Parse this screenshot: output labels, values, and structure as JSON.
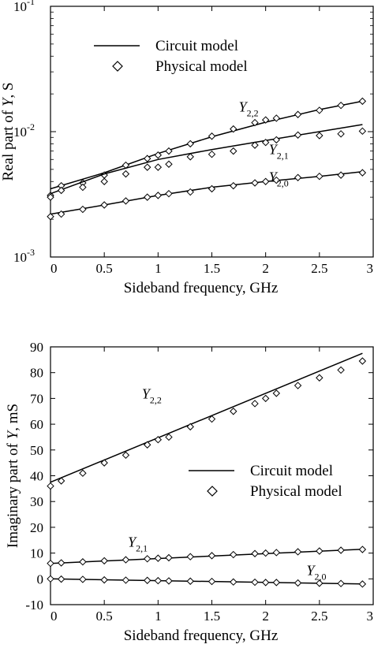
{
  "chart_data": [
    {
      "type": "line",
      "xlabel": "Sideband frequency, GHz",
      "ylabel_pre": "Real part of ",
      "ylabel_var": "Y",
      "ylabel_post": ", S",
      "yscale": "log",
      "xlim": [
        0,
        3
      ],
      "ylim": [
        0.001,
        0.1
      ],
      "x_ticks": [
        "0",
        "0.5",
        "1",
        "1.5",
        "2",
        "2.5",
        "3"
      ],
      "y_ticks": [
        {
          "value": 0.001,
          "base": "10",
          "exp": "-3"
        },
        {
          "value": 0.01,
          "base": "10",
          "exp": "-2"
        },
        {
          "value": 0.1,
          "base": "10",
          "exp": "-1"
        }
      ],
      "legend": {
        "placement": "top-left",
        "line_label": "Circuit model",
        "marker_label": "Physical model"
      },
      "series": [
        {
          "name": "Y2,2",
          "label_main": "Y",
          "label_sub": "2,2",
          "label_at": [
            1.75,
            0.0145
          ],
          "line": {
            "x": [
              0,
              0.5,
              1,
              1.5,
              2,
              2.5,
              2.9
            ],
            "y": [
              0.0035,
              0.0047,
              0.0067,
              0.0091,
              0.0119,
              0.015,
              0.0175
            ]
          },
          "markers": {
            "x": [
              0,
              0.1,
              0.3,
              0.5,
              0.7,
              0.9,
              1.0,
              1.1,
              1.3,
              1.5,
              1.7,
              1.9,
              2.0,
              2.1,
              2.3,
              2.5,
              2.7,
              2.9
            ],
            "y": [
              0.0031,
              0.0037,
              0.0039,
              0.0045,
              0.0054,
              0.0061,
              0.0065,
              0.007,
              0.008,
              0.0092,
              0.0105,
              0.0118,
              0.0124,
              0.0128,
              0.0137,
              0.0148,
              0.0162,
              0.0175
            ]
          }
        },
        {
          "name": "Y2,1",
          "label_main": "Y",
          "label_sub": "2,1",
          "label_at": [
            2.03,
            0.0066
          ],
          "line": {
            "x": [
              0,
              0.5,
              1,
              1.5,
              2,
              2.5,
              2.9
            ],
            "y": [
              0.0032,
              0.0046,
              0.006,
              0.0072,
              0.0085,
              0.01,
              0.0114
            ]
          },
          "markers": {
            "x": [
              0,
              0.1,
              0.3,
              0.5,
              0.7,
              0.9,
              1.0,
              1.1,
              1.3,
              1.5,
              1.7,
              1.9,
              2.0,
              2.1,
              2.3,
              2.5,
              2.7,
              2.9
            ],
            "y": [
              0.003,
              0.0034,
              0.0036,
              0.004,
              0.0046,
              0.0052,
              0.0052,
              0.0055,
              0.0063,
              0.0066,
              0.007,
              0.0078,
              0.0082,
              0.0086,
              0.0094,
              0.0093,
              0.0096,
              0.0101
            ]
          }
        },
        {
          "name": "Y2,0",
          "label_main": "Y",
          "label_sub": "2,0",
          "label_at": [
            2.03,
            0.004
          ],
          "line": {
            "x": [
              0,
              0.5,
              1,
              1.5,
              2,
              2.5,
              2.9
            ],
            "y": [
              0.0022,
              0.0026,
              0.0031,
              0.0036,
              0.004,
              0.0044,
              0.0048
            ]
          },
          "markers": {
            "x": [
              0,
              0.1,
              0.3,
              0.5,
              0.7,
              0.9,
              1.0,
              1.1,
              1.3,
              1.5,
              1.7,
              1.9,
              2.0,
              2.1,
              2.3,
              2.5,
              2.7,
              2.9
            ],
            "y": [
              0.0021,
              0.0022,
              0.0024,
              0.0026,
              0.0028,
              0.003,
              0.0031,
              0.0032,
              0.0033,
              0.0035,
              0.0037,
              0.0039,
              0.004,
              0.0041,
              0.0043,
              0.0044,
              0.0045,
              0.0047
            ]
          }
        }
      ]
    },
    {
      "type": "line",
      "xlabel": "Sideband frequency, GHz",
      "ylabel_pre": "Imaginary part of ",
      "ylabel_var": "Y",
      "ylabel_post": ", mS",
      "yscale": "linear",
      "xlim": [
        0,
        3
      ],
      "ylim": [
        -10,
        90
      ],
      "x_ticks": [
        "0",
        "0.5",
        "1",
        "1.5",
        "2",
        "2.5",
        "3"
      ],
      "y_ticks": [
        "-10",
        "0",
        "10",
        "20",
        "30",
        "40",
        "50",
        "60",
        "70",
        "80",
        "90"
      ],
      "legend": {
        "placement": "center-right",
        "line_label": "Circuit model",
        "marker_label": "Physical model"
      },
      "series": [
        {
          "name": "Y2,2",
          "label_main": "Y",
          "label_sub": "2,2",
          "label_at": [
            0.85,
            70
          ],
          "line": {
            "x": [
              0,
              2.9
            ],
            "y": [
              37.5,
              87.5
            ]
          },
          "markers": {
            "x": [
              0,
              0.1,
              0.3,
              0.5,
              0.7,
              0.9,
              1.0,
              1.1,
              1.3,
              1.5,
              1.7,
              1.9,
              2.0,
              2.1,
              2.3,
              2.5,
              2.7,
              2.9
            ],
            "y": [
              36,
              38,
              41,
              45,
              48,
              52,
              54,
              55,
              59,
              62,
              65,
              68,
              70,
              72,
              75,
              78,
              81,
              84.5
            ]
          }
        },
        {
          "name": "Y2,1",
          "label_main": "Y",
          "label_sub": "2,1",
          "label_at": [
            0.72,
            12.5
          ],
          "line": {
            "x": [
              0,
              2.9
            ],
            "y": [
              6,
              11.5
            ]
          },
          "markers": {
            "x": [
              0,
              0.1,
              0.3,
              0.5,
              0.7,
              0.9,
              1.0,
              1.1,
              1.3,
              1.5,
              1.7,
              1.9,
              2.0,
              2.1,
              2.3,
              2.5,
              2.7,
              2.9
            ],
            "y": [
              6,
              6.2,
              6.6,
              7.0,
              7.4,
              7.8,
              8.0,
              8.2,
              8.6,
              9.0,
              9.4,
              9.8,
              10.0,
              10.2,
              10.5,
              10.8,
              11.1,
              11.4
            ]
          }
        },
        {
          "name": "Y2,0",
          "label_main": "Y",
          "label_sub": "2,0",
          "label_at": [
            2.38,
            1.5
          ],
          "line": {
            "x": [
              0,
              2.9
            ],
            "y": [
              0,
              -2
            ]
          },
          "markers": {
            "x": [
              0,
              0.1,
              0.3,
              0.5,
              0.7,
              0.9,
              1.0,
              1.1,
              1.3,
              1.5,
              1.7,
              1.9,
              2.0,
              2.1,
              2.3,
              2.5,
              2.7,
              2.9
            ],
            "y": [
              0,
              -0.1,
              -0.2,
              -0.4,
              -0.5,
              -0.6,
              -0.7,
              -0.8,
              -0.9,
              -1.0,
              -1.2,
              -1.3,
              -1.4,
              -1.4,
              -1.6,
              -1.7,
              -1.8,
              -2.0
            ]
          }
        }
      ]
    }
  ]
}
